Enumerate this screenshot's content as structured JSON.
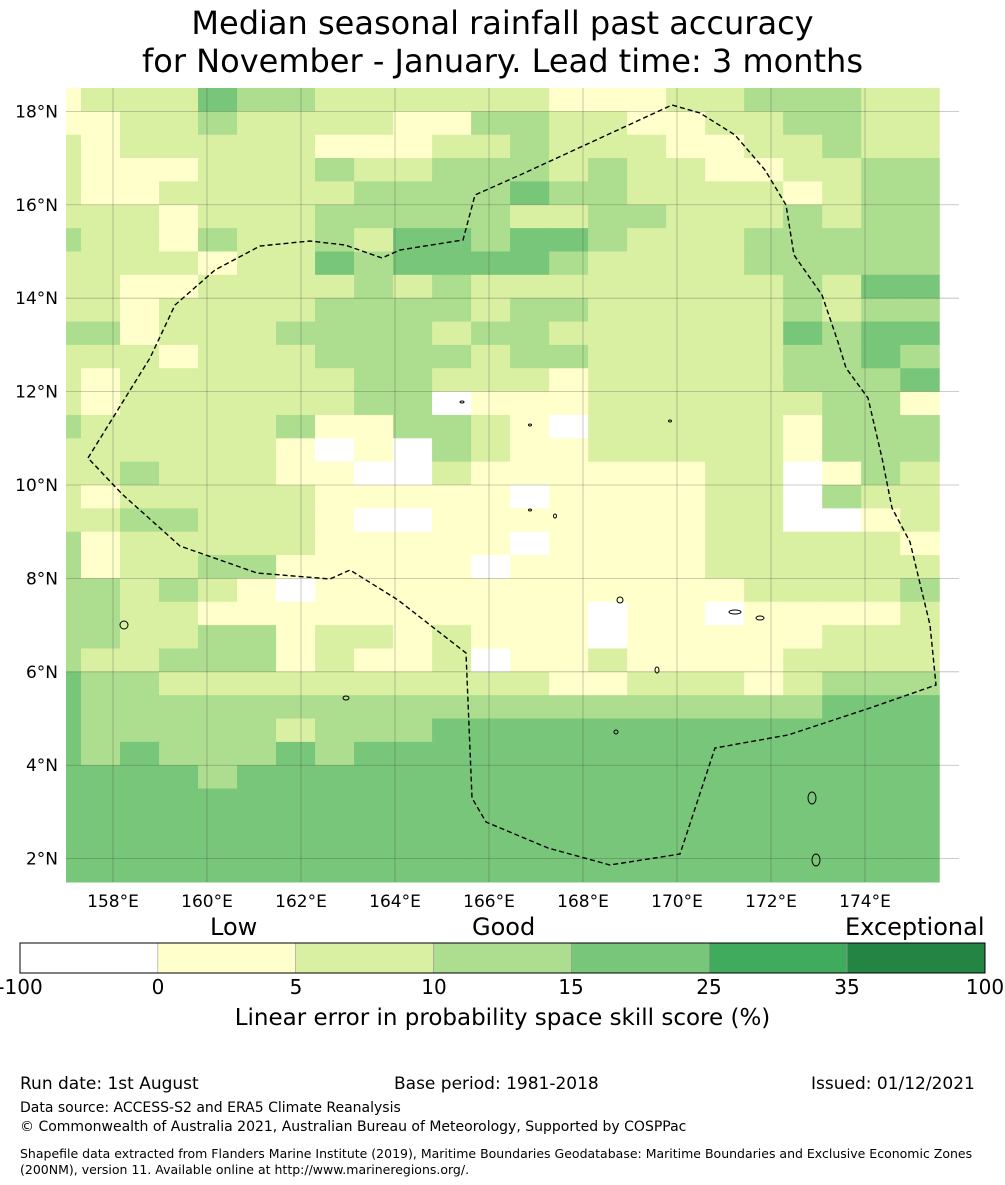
{
  "title": {
    "line1": "Median seasonal rainfall past accuracy",
    "line2": "for November - January. Lead time: 3 months"
  },
  "map": {
    "lon_range": [
      157.0,
      176.0
    ],
    "lat_range": [
      1.5,
      18.5
    ],
    "cell_size_deg": 0.83,
    "x_ticks": [
      "158°E",
      "160°E",
      "162°E",
      "164°E",
      "166°E",
      "168°E",
      "170°E",
      "172°E",
      "174°E"
    ],
    "y_ticks": [
      "18°N",
      "16°N",
      "14°N",
      "12°N",
      "10°N",
      "8°N",
      "6°N",
      "4°N",
      "2°N"
    ],
    "grid": true,
    "eez_boundary": "dashed",
    "skill_grid": [
      "12224332222221112233322",
      "11223222211332211223322",
      "21222221112232221122322",
      "21112223223332322112233",
      "21122222333343322221233",
      "22212223333322332223233",
      "32213223244344322233333",
      "22221224344443222233333",
      "22112222323222222223244",
      "22122223333233222223233",
      "33122233332332222224344",
      "22212223333233222223343",
      "21222222332221222223334",
      "21222222330111222222331",
      "32222231133210222221333",
      "22222210103211222221333",
      "22322211002111111220132",
      "21222221111101111220322",
      "22332221001111111220012",
      "31222221111101111222221",
      "31223311111011111222222",
      "33232101111111111122223",
      "33221111111111011011112",
      "33223312212111011111222",
      "32233312112011211112222",
      "43322222222221122212333",
      "43333333333333333333444",
      "43333323334444444444444",
      "43433343444444444444444",
      "44443444444444444444444",
      "44444444444444444444444",
      "44444444444444444444444",
      "44444444444444444444444",
      "44444444444444444444444"
    ]
  },
  "colorbar": {
    "words": [
      "Low",
      "Good",
      "Exceptional"
    ],
    "labels": [
      "-100",
      "0",
      "5",
      "10",
      "15",
      "25",
      "35",
      "100"
    ],
    "colors": [
      "#ffffff",
      "#ffffcc",
      "#d9f0a3",
      "#addd8e",
      "#78c679",
      "#41ab5d",
      "#238443"
    ],
    "title": "Linear error in probability space skill score (%)"
  },
  "footer": {
    "run_date": "Run date: 1st August",
    "base_period": "Base period: 1981-2018",
    "issued": "Issued: 01/12/2021",
    "data_source": "Data source: ACCESS-S2 and ERA5 Climate Reanalysis",
    "copyright": "© Commonwealth of Australia 2021, Australian Bureau of Meteorology, Supported by COSPPac",
    "shapefile": "Shapefile data extracted from Flanders Marine Institute (2019), Maritime Boundaries Geodatabase: Maritime Boundaries and Exclusive Economic Zones (200NM), version 11. Available online at http://www.marineregions.org/."
  }
}
